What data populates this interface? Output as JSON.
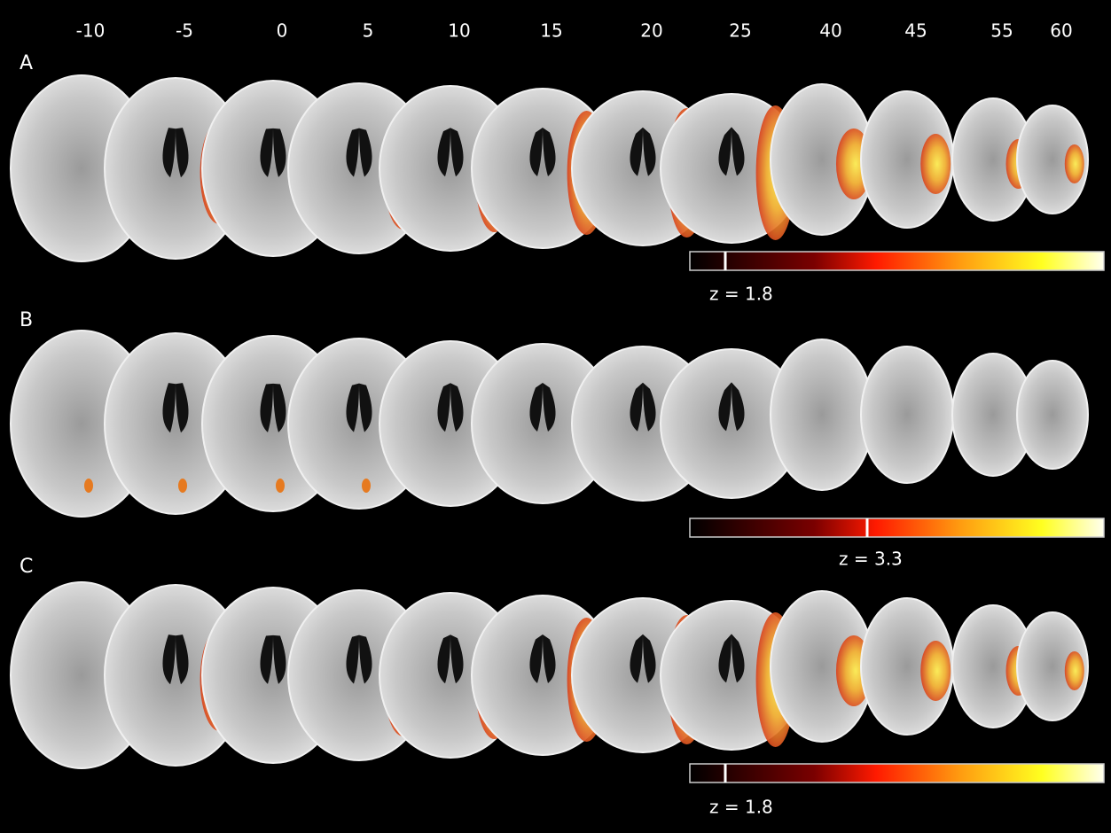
{
  "slice_labels": [
    "-10",
    "-5",
    "0",
    "5",
    "10",
    "15",
    "20",
    "25",
    "40",
    "45",
    "55",
    "60"
  ],
  "panels": [
    {
      "label": "A",
      "threshold_label": "z = 1.8"
    },
    {
      "label": "B",
      "threshold_label": "z = 3.3"
    },
    {
      "label": "C",
      "threshold_label": "z = 1.8"
    }
  ]
}
